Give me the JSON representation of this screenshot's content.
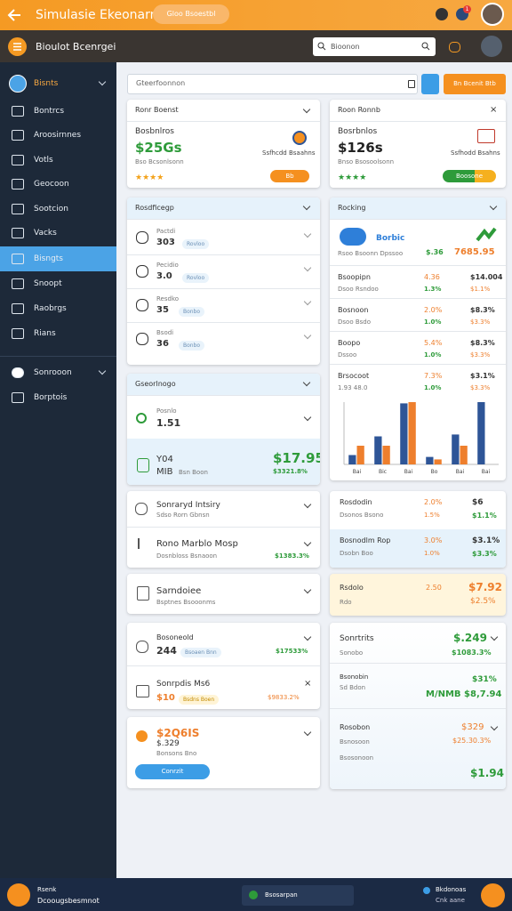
{
  "top_bar": {
    "title": "Simulasie Ekeonarn",
    "pill": "Gloo Bsoestbl",
    "badge": "1"
  },
  "header": {
    "title": "Bioulot Bcenrgei",
    "search": "Bioonon"
  },
  "sidebar": {
    "items": [
      "Bisnts",
      "Bontrcs",
      "Aroosirnnes",
      "Votls",
      "Geocoon",
      "Sootcion",
      "Vacks",
      "Bisngts",
      "Snoopt",
      "Raobrgs",
      "Rians",
      "Sonrooon",
      "Borptois"
    ]
  },
  "toolbar": {
    "search": "Gteerfoonnon",
    "button": "Bn Bcenit Btb"
  },
  "left": {
    "card1": {
      "title": "Ronr Boenst",
      "label": "Bosbnlros",
      "price": "$25Gs",
      "sub": "Ssfhcdd Bsaahns",
      "note": "Bso Bcsonlsonn",
      "button": "Bb"
    },
    "card2": {
      "title": "Rosdficegp",
      "items": [
        {
          "name": "Pactdi",
          "value": "303",
          "tag": "Rovloo"
        },
        {
          "name": "Pecidio",
          "value": "3.0",
          "tag": "Rovloo"
        },
        {
          "name": "Resdko",
          "value": "35",
          "tag": "Bonbo"
        },
        {
          "name": "Bsodi",
          "value": "36",
          "tag": "Bonbo"
        }
      ]
    },
    "card3": {
      "title": "Gseorlnogo",
      "name1": "Posnlo",
      "value1": "1.51",
      "name2": "Y04",
      "value2": "MIB",
      "tag2": "Bsn Boon",
      "price": "$17.95",
      "change": "$3321.8%"
    },
    "card4": {
      "title1": "Sonraryd Intsiry",
      "sub1": "Sdso Rorn Gbnsn",
      "title2": "Rono Marblo Mosp",
      "sub2": "Dosnbloss Bsnaoon",
      "value2": "$1383.3%"
    },
    "card5": {
      "title": "Sarndoiee",
      "sub": "Bsptnes Bsooonms"
    },
    "card6": {
      "title1": "Bosoneold",
      "value1": "244",
      "tag1": "Bsoaen Bnn",
      "change1": "$17533%",
      "title2": "Sonrpdis Ms6",
      "value2": "$10",
      "tag2": "Bsdns Boen",
      "change2": "$9833.2%"
    },
    "card7": {
      "price": "$2Q6IS",
      "value": "$.329",
      "sub": "Bonsons Bno",
      "button": "Conrzit"
    }
  },
  "right": {
    "card1": {
      "title": "Roon Ronnb",
      "label": "Bosrbnlos",
      "price": "$126s",
      "sub": "Ssfhodd Bsahns",
      "note": "Bnso Bsosoolsonn",
      "button": "Boosone"
    },
    "card2": {
      "title": "Rocking",
      "brand": "Borbic",
      "brand_sub": "Rsoo Bsoonn Dpssoo",
      "brand_a": "$.36",
      "brand_b": "7685.95",
      "rows": [
        {
          "name": "Bsoopipn",
          "sub": "Dsoo Rsndoo",
          "a": "4.36",
          "b": "$14.004",
          "c": "1.3%",
          "d": "$1.1%"
        },
        {
          "name": "Bosnoon",
          "sub": "Dsoo Bsdo",
          "a": "2.0%",
          "b": "$8.3%",
          "c": "1.0%",
          "d": "$3.3%"
        },
        {
          "name": "Boopo",
          "sub": "Dssoo",
          "a": "5.4%",
          "b": "$8.3%",
          "c": "1.0%",
          "d": "$3.3%"
        },
        {
          "name": "Brsocoot",
          "sub": "1.93 48.0",
          "a": "7.3%",
          "b": "$3.1%",
          "c": "1.0%",
          "d": "$3.3%"
        }
      ]
    },
    "card3": {
      "rows": [
        {
          "name": "Rosdodin",
          "sub": "Dsonos Bsono",
          "a": "2.0%",
          "b": "$6",
          "c": "1.5%",
          "d": "$1.1%"
        },
        {
          "name": "Bosnodlm Rop",
          "sub": "Dsobn Boo",
          "a": "3.0%",
          "b": "$3.1%",
          "c": "1.0%",
          "d": "$3.3%"
        }
      ]
    },
    "card4": {
      "name": "Rsdolo",
      "sub": "Rdo",
      "a": "2.50",
      "b": "$7.92",
      "c": "$2.5%"
    },
    "card5": {
      "title": "Sonrtrits",
      "value": "$.249",
      "sub": "Sonobo",
      "change": "$1083.3%",
      "name2": "Bsonobin",
      "sub2": "Sd Bdon",
      "a2": "$31%",
      "b2": "M/NMB $8,7.94",
      "name3": "Rosobon",
      "sub3": "Bsnosoon",
      "a3": "$329",
      "b3": "$25.30.3%",
      "sub4": "Bsosonoon",
      "b4": "$1.94"
    }
  },
  "chart": {
    "type": "bar",
    "categories": [
      "Bai",
      "Bic",
      "Bai",
      "Bo",
      "Bai",
      "Bai"
    ],
    "series": [
      {
        "color": "#2e5597",
        "values": [
          15,
          45,
          98,
          12,
          48,
          100
        ]
      },
      {
        "color": "#ee7f2d",
        "values": [
          30,
          30,
          100,
          8,
          30,
          null
        ]
      }
    ],
    "ylim": [
      0,
      100
    ]
  },
  "footer": {
    "title": "Rsenk",
    "sub": "Dcoougsbesmnot",
    "pill": "Bsosarpan",
    "right": "Bkdonoas",
    "right_sub": "Cnk aane"
  }
}
